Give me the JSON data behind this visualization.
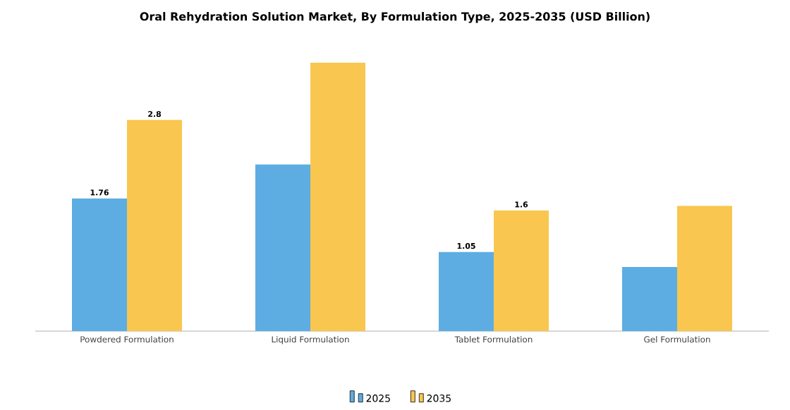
{
  "chart_data": {
    "type": "bar",
    "title": "Oral Rehydration Solution Market, By Formulation Type, 2025-2035 (USD Billion)",
    "categories": [
      "Powdered Formulation",
      "Liquid Formulation",
      "Tablet Formulation",
      "Gel Formulation"
    ],
    "series": [
      {
        "name": "2025",
        "color": "#5dade2",
        "values": [
          1.76,
          2.21,
          1.05,
          0.85
        ],
        "value_labels": [
          "1.76",
          null,
          "1.05",
          null
        ]
      },
      {
        "name": "2035",
        "color": "#f9c74f",
        "values": [
          2.8,
          3.56,
          1.6,
          1.66
        ],
        "value_labels": [
          "2.8",
          null,
          "1.6",
          null
        ]
      }
    ],
    "legend": "bottom"
  }
}
